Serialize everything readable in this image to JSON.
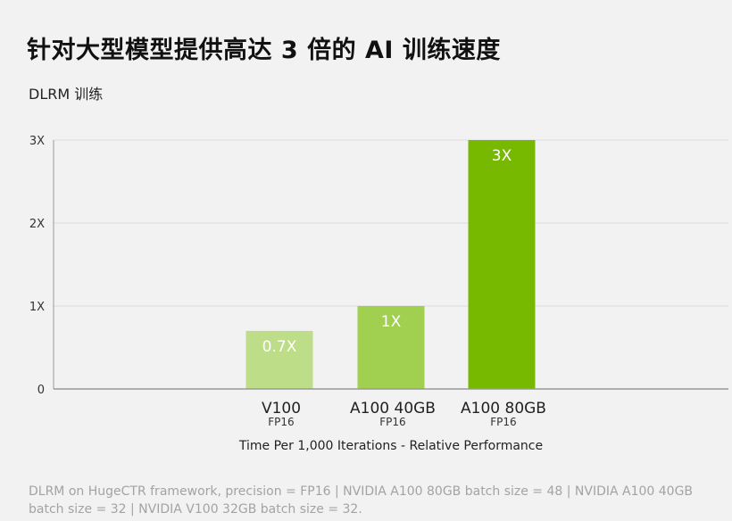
{
  "title": "针对大型模型提供高达 3 倍的 AI 训练速度",
  "footnote": "DLRM on HugeCTR framework, precision = FP16 | NVIDIA A100 80GB batch size = 48 | NVIDIA A100 40GB batch size = 32 | NVIDIA V100 32GB batch size = 32.",
  "colors": {
    "bar_v100": "#bddd88",
    "bar_a100_40": "#a1cf4f",
    "bar_a100_80": "#76b900",
    "gridline": "#dcdcdc",
    "axis": "#999999"
  },
  "chart_data": {
    "type": "bar",
    "title": "DLRM 训练",
    "xlabel": "Time Per 1,000 Iterations - Relative Performance",
    "ylabel": "",
    "categories": [
      "V100",
      "A100 40GB",
      "A100 80GB"
    ],
    "category_sublabels": [
      "FP16",
      "FP16",
      "FP16"
    ],
    "values": [
      0.7,
      1,
      3
    ],
    "data_labels": [
      "0.7X",
      "1X",
      "3X"
    ],
    "ylim": [
      0,
      3
    ],
    "yticks": [
      0,
      1,
      2,
      3
    ],
    "ytick_labels": [
      "0",
      "1X",
      "2X",
      "3X"
    ],
    "grid": true,
    "legend": "none"
  }
}
